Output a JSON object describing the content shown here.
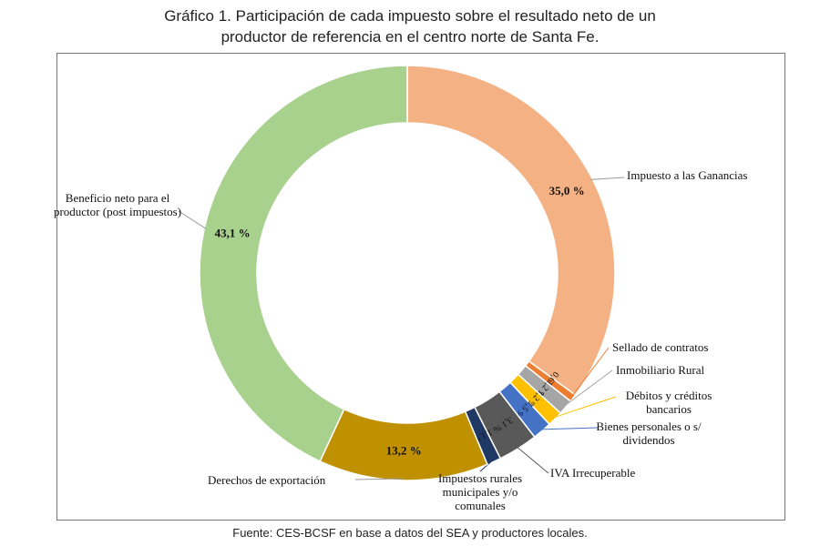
{
  "chart_data": {
    "type": "donut",
    "title": "Gráfico 1. Participación de cada impuesto sobre el resultado neto de un productor de referencia en el centro norte de Santa Fe.",
    "categories": [
      "Impuesto a las Ganancias",
      "Sellado de contratos",
      "Inmobiliario Rural",
      "Débitos y créditos bancarios",
      "Bienes personales o s/ dividendos",
      "IVA Irrecuperable",
      "Impuestos rurales municipales y/o comunales",
      "Derechos de exportación",
      "Beneficio neto para el productor (post impuestos)"
    ],
    "values": [
      35.0,
      0.6,
      1.2,
      1.2,
      1.5,
      3.1,
      1.1,
      13.2,
      43.1
    ],
    "value_labels": [
      "35,0 %",
      "0,6 %",
      "1,2 %",
      "1,2 %",
      "1,5 %",
      "3,1 %",
      "1,1 %",
      "13,2 %",
      "43,1 %"
    ],
    "colors": [
      "#f4b183",
      "#ed7d31",
      "#a5a5a5",
      "#ffc000",
      "#4472c4",
      "#595959",
      "#1f3864",
      "#bf9000",
      "#a9d18e"
    ],
    "source": "Fuente: CES-BCSF en base a datos del SEA y productores locales."
  }
}
